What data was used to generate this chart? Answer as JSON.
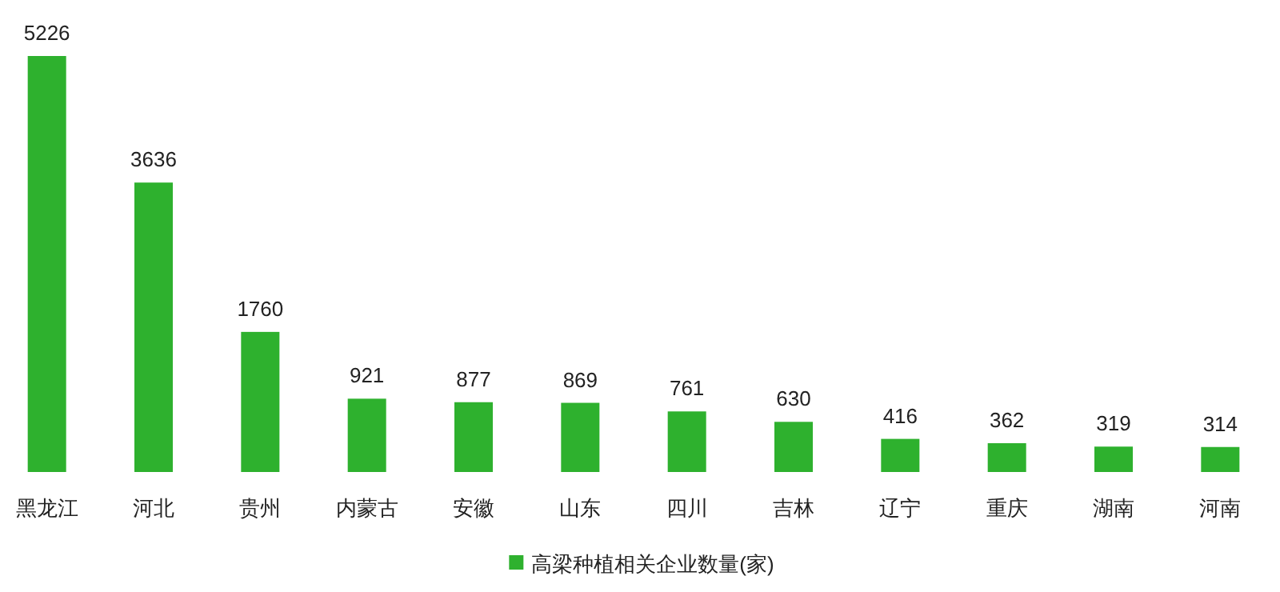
{
  "chart_data": {
    "type": "bar",
    "categories": [
      "黑龙江",
      "河北",
      "贵州",
      "内蒙古",
      "安徽",
      "山东",
      "四川",
      "吉林",
      "辽宁",
      "重庆",
      "湖南",
      "河南"
    ],
    "series": [
      {
        "name": "高梁种植相关企业数量(家)",
        "color": "#2eb12e",
        "values": [
          5226,
          3636,
          1760,
          921,
          877,
          869,
          761,
          630,
          416,
          362,
          319,
          314
        ]
      }
    ],
    "data_labels": true,
    "legend": "bottom"
  }
}
